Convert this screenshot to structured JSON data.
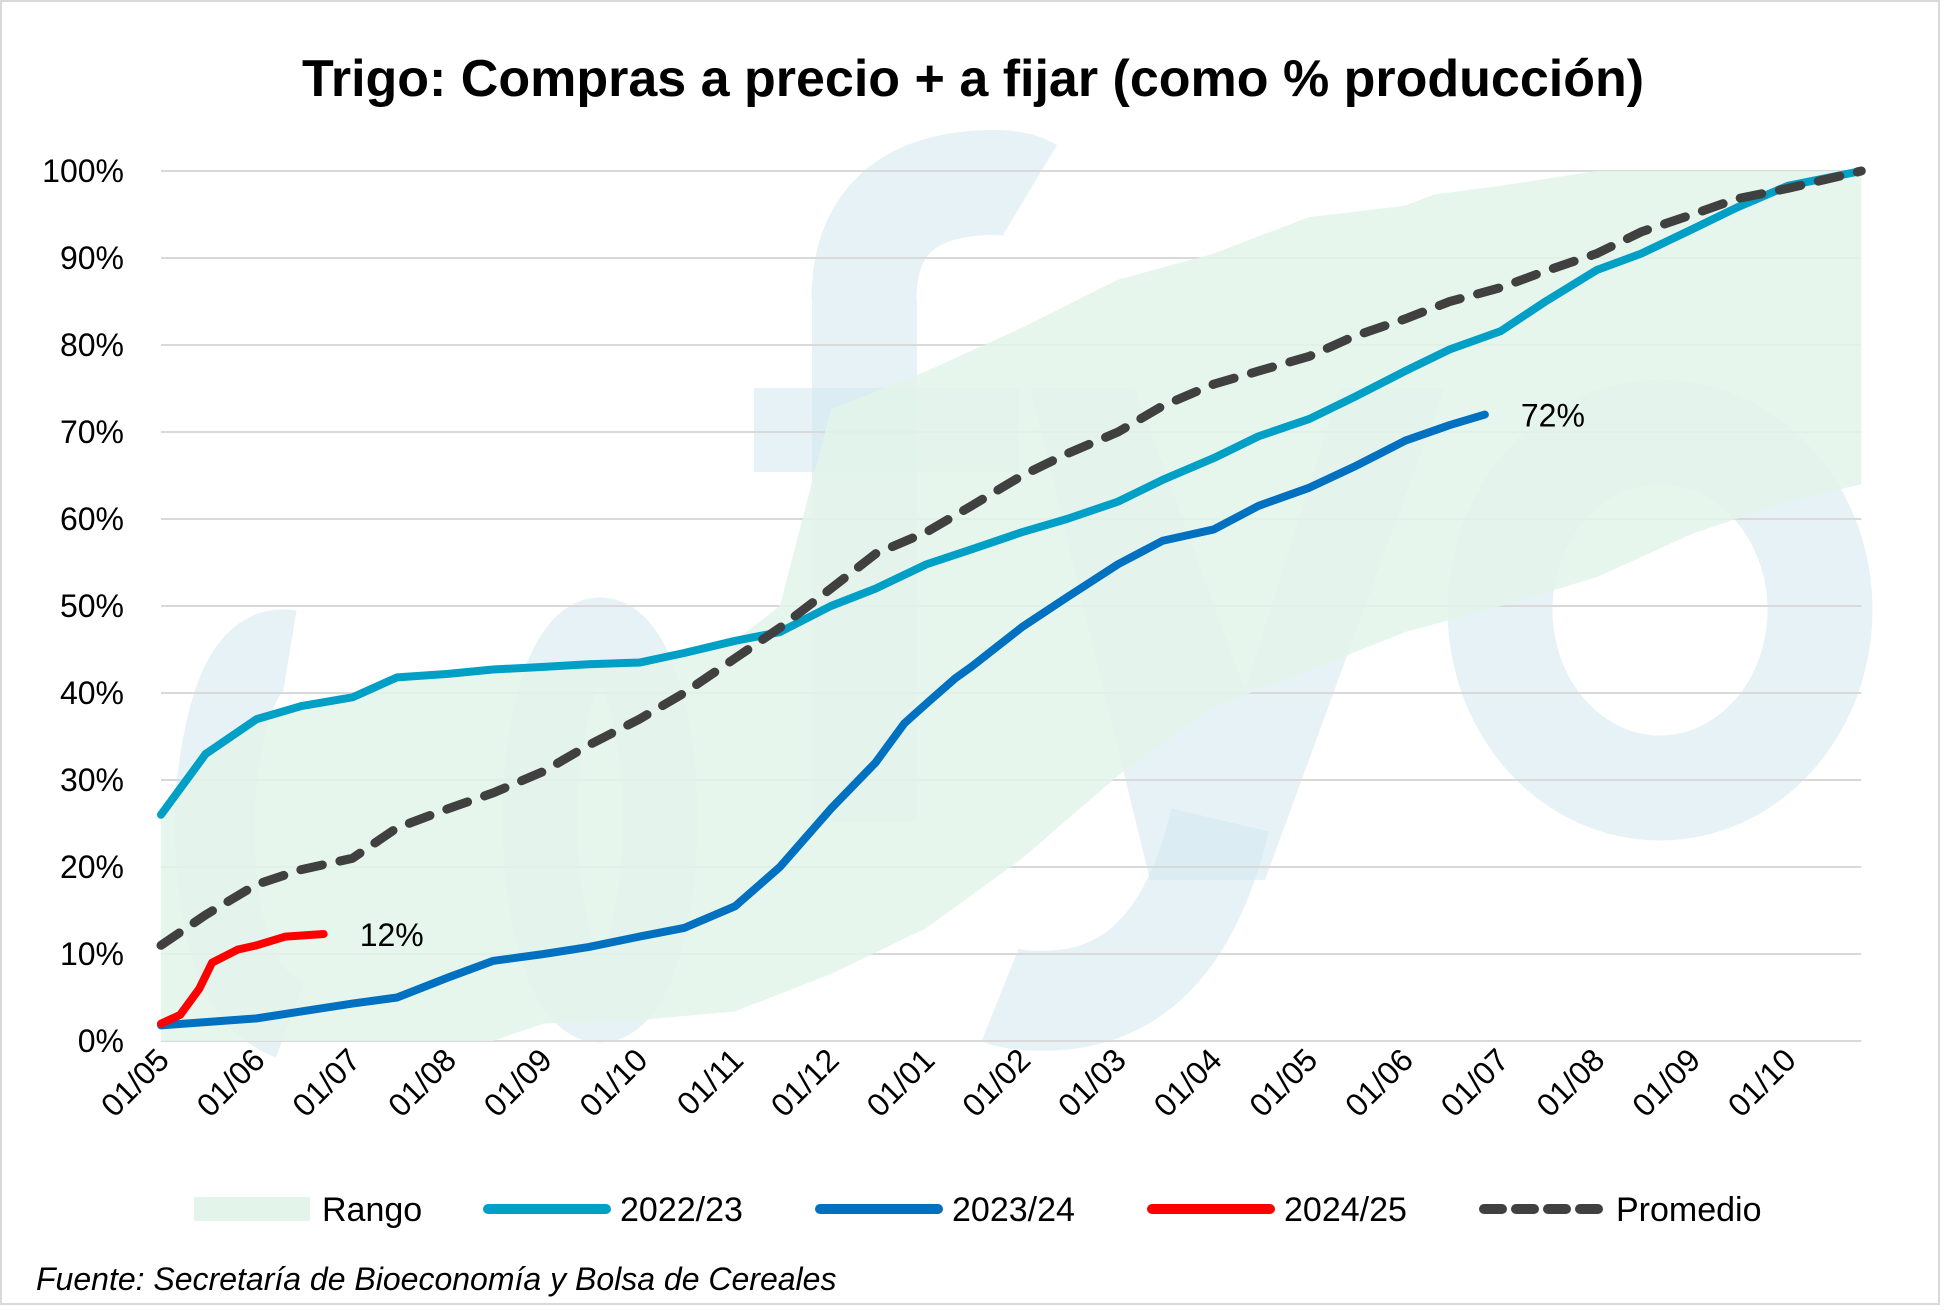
{
  "chart_data": {
    "type": "line",
    "title": "Trigo: Compras a precio + a fijar (como % producción)",
    "source": "Fuente: Secretaría de Bioeconomía y Bolsa de Cereales",
    "ylim": [
      0,
      100
    ],
    "y_ticks": [
      "0%",
      "10%",
      "20%",
      "30%",
      "40%",
      "50%",
      "60%",
      "70%",
      "80%",
      "90%",
      "100%"
    ],
    "x_ticks": [
      "01/05",
      "01/06",
      "01/07",
      "01/08",
      "01/09",
      "01/10",
      "01/11",
      "01/12",
      "01/01",
      "01/02",
      "01/03",
      "01/04",
      "01/05",
      "01/06",
      "01/07",
      "01/08",
      "01/09",
      "01/10"
    ],
    "grid": true,
    "legend_position": "bottom",
    "watermark": "fyo",
    "range": {
      "name": "Rango",
      "color": "#e3f4ea",
      "upper": [
        [
          "01/05",
          26
        ],
        [
          "15/05",
          33
        ],
        [
          "01/06",
          37
        ],
        [
          "15/06",
          38.5
        ],
        [
          "01/07",
          40
        ],
        [
          "15/07",
          41.8
        ],
        [
          "01/08",
          42.2
        ],
        [
          "01/09",
          43
        ],
        [
          "01/10",
          43.5
        ],
        [
          "01/11",
          46
        ],
        [
          "15/11",
          50
        ],
        [
          "01/12",
          72.6
        ],
        [
          "01/01",
          77
        ],
        [
          "01/02",
          82
        ],
        [
          "01/03",
          87.5
        ],
        [
          "01/04",
          90.5
        ],
        [
          "15/04",
          92.5
        ],
        [
          "01/05",
          94.7
        ],
        [
          "01/06",
          96
        ],
        [
          "10/06",
          97.3
        ],
        [
          "01/07",
          98.3
        ],
        [
          "01/08",
          100
        ],
        [
          "24/10",
          100
        ]
      ],
      "lower": [
        [
          "01/05",
          0
        ],
        [
          "01/08",
          0
        ],
        [
          "15/08",
          0
        ],
        [
          "01/09",
          2
        ],
        [
          "01/10",
          2.4
        ],
        [
          "01/11",
          3.4
        ],
        [
          "01/12",
          7.7
        ],
        [
          "01/01",
          13
        ],
        [
          "01/02",
          21
        ],
        [
          "01/03",
          30.5
        ],
        [
          "01/04",
          38.4
        ],
        [
          "01/05",
          42.6
        ],
        [
          "01/06",
          47
        ],
        [
          "01/07",
          50
        ],
        [
          "01/08",
          53.3
        ],
        [
          "01/09",
          58.3
        ],
        [
          "01/10",
          62
        ],
        [
          "24/10",
          64
        ]
      ]
    },
    "series": [
      {
        "name": "2022/23",
        "color": "#00a0c6",
        "dashed": false,
        "points": [
          [
            "01/05",
            26
          ],
          [
            "15/05",
            33
          ],
          [
            "01/06",
            37
          ],
          [
            "15/06",
            38.5
          ],
          [
            "01/07",
            39.5
          ],
          [
            "15/07",
            41.8
          ],
          [
            "01/08",
            42.2
          ],
          [
            "15/08",
            42.7
          ],
          [
            "01/09",
            43
          ],
          [
            "15/09",
            43.3
          ],
          [
            "01/10",
            43.5
          ],
          [
            "15/10",
            44.6
          ],
          [
            "01/11",
            46
          ],
          [
            "15/11",
            47
          ],
          [
            "01/12",
            50
          ],
          [
            "15/12",
            52
          ],
          [
            "01/01",
            54.8
          ],
          [
            "15/01",
            56.5
          ],
          [
            "01/02",
            58.5
          ],
          [
            "15/02",
            60
          ],
          [
            "01/03",
            62
          ],
          [
            "15/03",
            64.5
          ],
          [
            "01/04",
            67
          ],
          [
            "15/04",
            69.5
          ],
          [
            "01/05",
            71.5
          ],
          [
            "15/05",
            74
          ],
          [
            "01/06",
            77
          ],
          [
            "15/06",
            79.5
          ],
          [
            "01/07",
            81.6
          ],
          [
            "15/07",
            85
          ],
          [
            "01/08",
            88.6
          ],
          [
            "15/08",
            90.5
          ],
          [
            "01/09",
            93.3
          ],
          [
            "15/09",
            95.8
          ],
          [
            "01/10",
            98.3
          ],
          [
            "24/10",
            100
          ]
        ]
      },
      {
        "name": "2023/24",
        "color": "#0070c0",
        "dashed": false,
        "label": "72%",
        "points": [
          [
            "01/05",
            1.8
          ],
          [
            "01/06",
            2.6
          ],
          [
            "15/06",
            3.4
          ],
          [
            "01/07",
            4.3
          ],
          [
            "15/07",
            5
          ],
          [
            "01/08",
            7.3
          ],
          [
            "15/08",
            9.2
          ],
          [
            "01/09",
            10
          ],
          [
            "15/09",
            10.8
          ],
          [
            "01/10",
            12
          ],
          [
            "15/10",
            13
          ],
          [
            "01/11",
            15.5
          ],
          [
            "15/11",
            20
          ],
          [
            "01/12",
            26.7
          ],
          [
            "15/12",
            32
          ],
          [
            "24/12",
            36.5
          ],
          [
            "01/01",
            38.8
          ],
          [
            "10/01",
            41.7
          ],
          [
            "15/01",
            43
          ],
          [
            "01/02",
            47.6
          ],
          [
            "15/02",
            51
          ],
          [
            "01/03",
            54.8
          ],
          [
            "15/03",
            57.5
          ],
          [
            "01/04",
            58.8
          ],
          [
            "15/04",
            61.5
          ],
          [
            "01/05",
            63.6
          ],
          [
            "15/05",
            66
          ],
          [
            "01/06",
            69
          ],
          [
            "15/06",
            70.8
          ],
          [
            "26/06",
            72
          ]
        ]
      },
      {
        "name": "2024/25",
        "color": "#ff0000",
        "dashed": false,
        "label": "12%",
        "points": [
          [
            "01/05",
            2
          ],
          [
            "07/05",
            3
          ],
          [
            "13/05",
            6
          ],
          [
            "17/05",
            9
          ],
          [
            "25/05",
            10.5
          ],
          [
            "01/06",
            11
          ],
          [
            "10/06",
            12
          ],
          [
            "22/06",
            12.3
          ]
        ]
      },
      {
        "name": "Promedio",
        "color": "#404040",
        "dashed": true,
        "points": [
          [
            "01/05",
            11
          ],
          [
            "15/05",
            14.5
          ],
          [
            "01/06",
            18
          ],
          [
            "15/06",
            19.7
          ],
          [
            "01/07",
            21
          ],
          [
            "15/07",
            24.5
          ],
          [
            "01/08",
            26.7
          ],
          [
            "15/08",
            28.5
          ],
          [
            "01/09",
            31
          ],
          [
            "15/09",
            34
          ],
          [
            "01/10",
            37
          ],
          [
            "15/10",
            40
          ],
          [
            "01/11",
            44
          ],
          [
            "15/11",
            47.5
          ],
          [
            "01/12",
            52
          ],
          [
            "15/12",
            56
          ],
          [
            "01/01",
            58.5
          ],
          [
            "15/01",
            61.5
          ],
          [
            "01/02",
            65
          ],
          [
            "15/02",
            67.5
          ],
          [
            "01/03",
            70
          ],
          [
            "15/03",
            73
          ],
          [
            "01/04",
            75.5
          ],
          [
            "15/04",
            77
          ],
          [
            "01/05",
            78.7
          ],
          [
            "15/05",
            81
          ],
          [
            "01/06",
            83
          ],
          [
            "15/06",
            85
          ],
          [
            "01/07",
            86.6
          ],
          [
            "15/07",
            88.5
          ],
          [
            "01/08",
            90.5
          ],
          [
            "15/08",
            93
          ],
          [
            "01/09",
            95
          ],
          [
            "15/09",
            96.8
          ],
          [
            "01/10",
            98
          ],
          [
            "24/10",
            100
          ]
        ]
      }
    ]
  }
}
